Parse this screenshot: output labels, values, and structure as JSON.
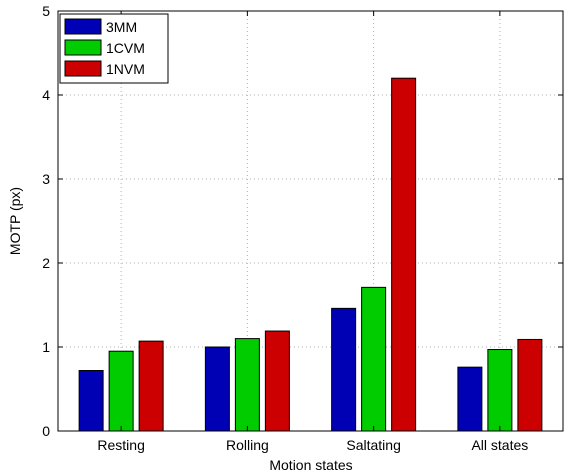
{
  "chart_data": {
    "type": "bar",
    "categories": [
      "Resting",
      "Rolling",
      "Saltating",
      "All states"
    ],
    "series": [
      {
        "name": "3MM",
        "color": "#0000b4",
        "values": [
          0.72,
          1.0,
          1.46,
          0.76
        ]
      },
      {
        "name": "1CVM",
        "color": "#00cc00",
        "values": [
          0.95,
          1.1,
          1.71,
          0.97
        ]
      },
      {
        "name": "1NVM",
        "color": "#cc0000",
        "values": [
          1.07,
          1.19,
          4.2,
          1.09
        ]
      }
    ],
    "xlabel": "Motion states",
    "ylabel": "MOTP (px)",
    "ylim": [
      0,
      5
    ],
    "yticks": [
      0,
      1,
      2,
      3,
      4,
      5
    ],
    "grid": true,
    "legend_position": "top-left"
  }
}
